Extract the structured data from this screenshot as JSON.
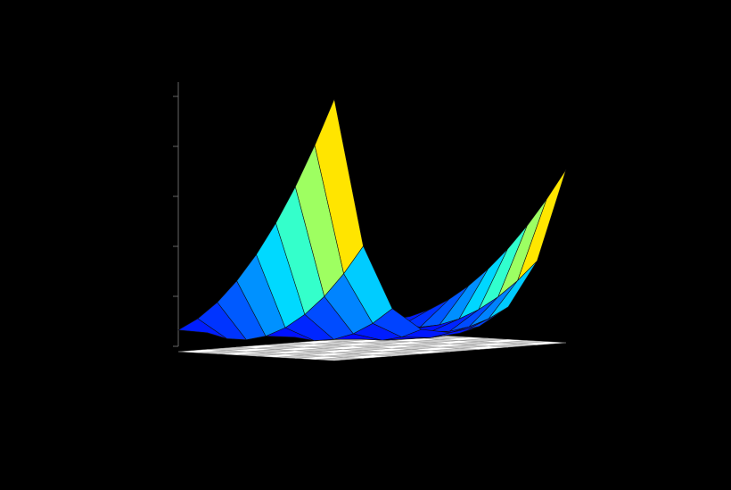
{
  "chart_data": {
    "type": "surface",
    "x": [
      -2,
      -1.5,
      -1,
      -0.5,
      0,
      0.5,
      1,
      1.5,
      2
    ],
    "y": [
      -1,
      -0.5,
      0,
      0.5,
      1,
      1.5,
      2,
      2.5,
      3
    ],
    "z": [
      [
        2509,
        1062.5,
        404,
        158.5,
        101,
        156.5,
        400,
        1056.5,
        2501
      ],
      [
        2034,
        762.5,
        229,
        58.5,
        26,
        56.5,
        225,
        756.5,
        2026
      ],
      [
        1609,
        512.5,
        104,
        8.5,
        1,
        6.5,
        100,
        506.5,
        1601
      ],
      [
        1234,
        312.5,
        29,
        8.5,
        26,
        6.5,
        25,
        306.5,
        1226
      ],
      [
        909,
        162.5,
        4,
        58.5,
        101,
        56.5,
        0,
        156.5,
        901
      ],
      [
        634,
        62.5,
        29,
        158.5,
        226,
        156.5,
        25,
        56.5,
        626
      ],
      [
        409,
        12.5,
        104,
        308.5,
        401,
        306.5,
        100,
        6.5,
        401
      ],
      [
        234,
        12.5,
        229,
        508.5,
        626,
        506.5,
        225,
        6.5,
        226
      ],
      [
        109,
        62.5,
        404,
        758.5,
        901,
        756.5,
        400,
        56.5,
        101
      ]
    ],
    "xlim": [
      -2,
      2
    ],
    "ylim": [
      -1,
      3
    ],
    "zlim": [
      0,
      3000
    ],
    "zticks": [
      0,
      500,
      1000,
      1500,
      2000,
      2500
    ],
    "colormap": "jet"
  }
}
